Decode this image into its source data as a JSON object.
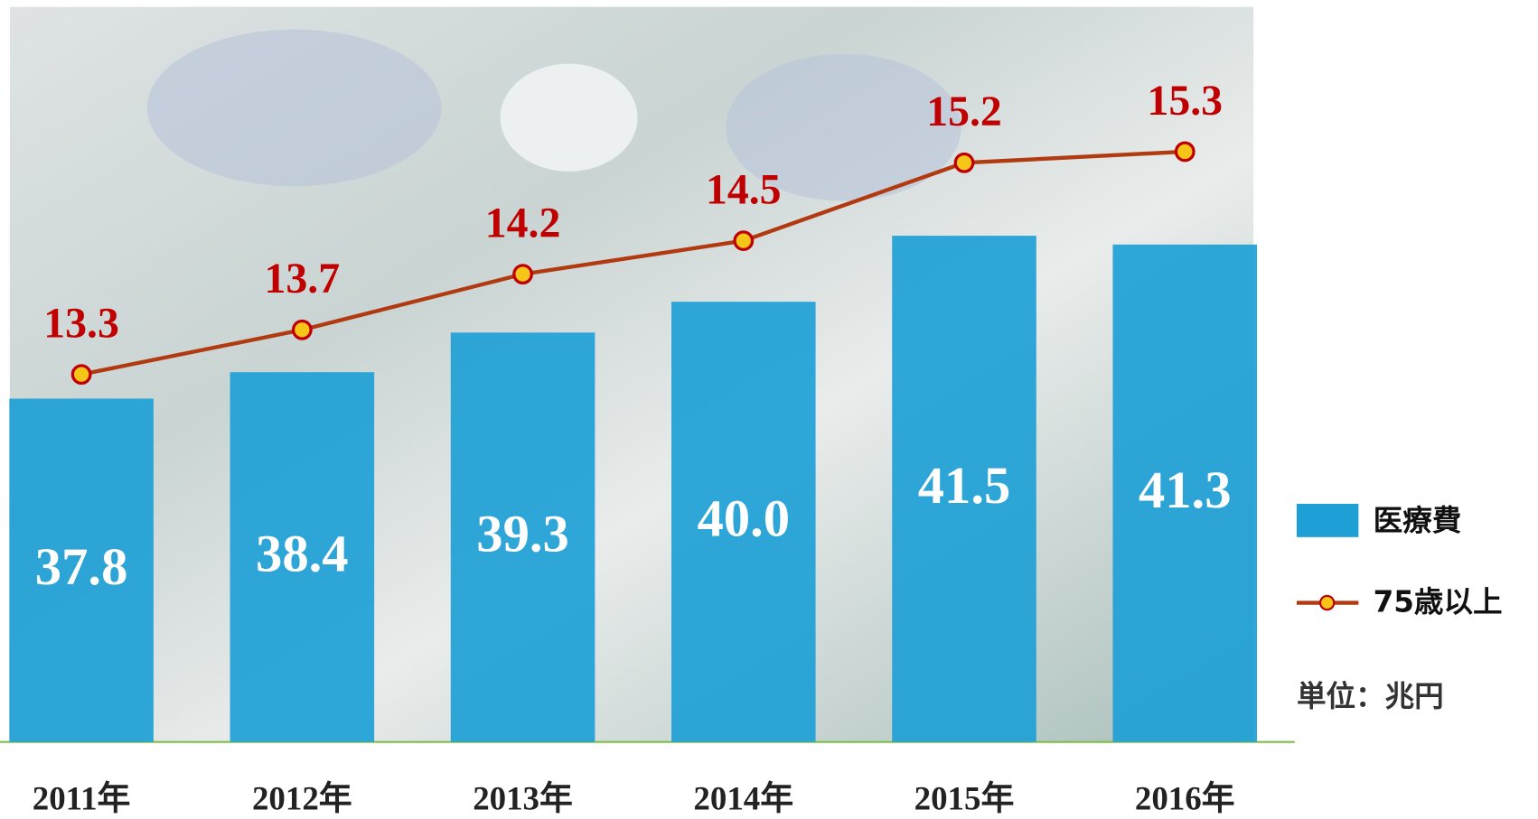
{
  "chart_data": {
    "type": "bar",
    "categories": [
      "2011年",
      "2012年",
      "2013年",
      "2014年",
      "2015年",
      "2016年"
    ],
    "series": [
      {
        "name": "医療費",
        "type": "bar",
        "color": "#1e9fd6",
        "values": [
          37.8,
          38.4,
          39.3,
          40.0,
          41.5,
          41.3
        ],
        "value_labels": [
          "37.8",
          "38.4",
          "39.3",
          "40.0",
          "41.5",
          "41.3"
        ]
      },
      {
        "name": "75歳以上",
        "type": "line",
        "axis": "y2",
        "color": "#b23a10",
        "marker_color": "#f5c518",
        "label_color": "#c00000",
        "values": [
          13.3,
          13.7,
          14.2,
          14.5,
          15.2,
          15.3
        ]
      }
    ],
    "ylim": [
      30,
      46.7
    ],
    "y2lim": [
      10,
      16.6
    ],
    "unit_note": "単位：兆円"
  }
}
